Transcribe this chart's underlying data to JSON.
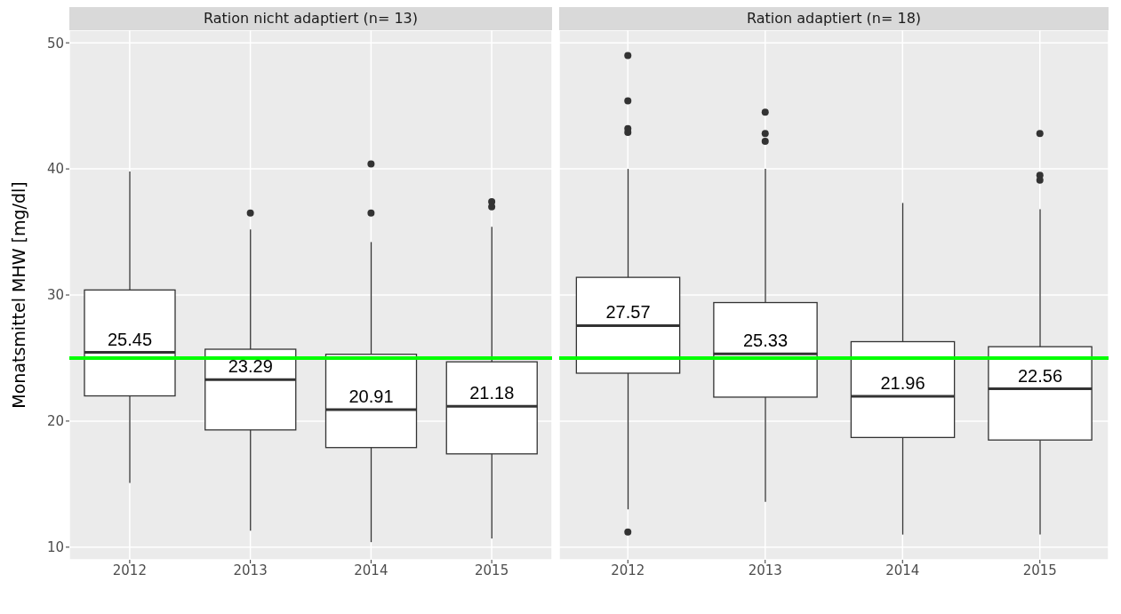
{
  "chart_data": [
    {
      "type": "box",
      "title": "Ration nicht adaptiert (n= 13)",
      "ylabel": "Monatsmittel MHW [mg/dl]",
      "categories": [
        "2012",
        "2013",
        "2014",
        "2015"
      ],
      "boxes": [
        {
          "low": 15.1,
          "q1": 22.0,
          "median": 25.45,
          "q3": 30.4,
          "high": 39.8
        },
        {
          "low": 11.3,
          "q1": 19.3,
          "median": 23.29,
          "q3": 25.7,
          "high": 35.2,
          "outliers": [
            36.5
          ]
        },
        {
          "low": 10.4,
          "q1": 17.9,
          "median": 20.91,
          "q3": 25.3,
          "high": 34.2,
          "outliers": [
            40.4,
            36.5
          ]
        },
        {
          "low": 10.7,
          "q1": 17.4,
          "median": 21.18,
          "q3": 24.7,
          "high": 35.4,
          "outliers": [
            37.4,
            37.0
          ]
        }
      ],
      "annotations": [
        {
          "text": "25.45",
          "x": "2012",
          "y": 25.45
        },
        {
          "text": "23.29",
          "x": "2013",
          "y": 23.29
        },
        {
          "text": "20.91",
          "x": "2014",
          "y": 20.91
        },
        {
          "text": "21.18",
          "x": "2015",
          "y": 21.18
        }
      ],
      "ylim": [
        9,
        51
      ],
      "yticks": [
        10,
        20,
        30,
        40,
        50
      ],
      "grid": true,
      "ref_lines": [
        {
          "axis": "y",
          "value": 25,
          "color": "#00ff00"
        }
      ]
    },
    {
      "type": "box",
      "title": "Ration adaptiert (n= 18)",
      "categories": [
        "2012",
        "2013",
        "2014",
        "2015"
      ],
      "boxes": [
        {
          "low": 13.0,
          "q1": 23.8,
          "median": 27.57,
          "q3": 31.4,
          "high": 40.0,
          "outliers": [
            49.0,
            45.4,
            43.2,
            42.9,
            11.2
          ]
        },
        {
          "low": 13.6,
          "q1": 21.9,
          "median": 25.33,
          "q3": 29.4,
          "high": 40.0,
          "outliers": [
            44.5,
            42.8,
            42.2
          ]
        },
        {
          "low": 11.0,
          "q1": 18.7,
          "median": 21.96,
          "q3": 26.3,
          "high": 37.3
        },
        {
          "low": 11.0,
          "q1": 18.5,
          "median": 22.56,
          "q3": 25.9,
          "high": 36.8,
          "outliers": [
            42.8,
            39.5,
            39.1
          ]
        }
      ],
      "annotations": [
        {
          "text": "27.57",
          "x": "2012",
          "y": 27.57
        },
        {
          "text": "25.33",
          "x": "2013",
          "y": 25.33
        },
        {
          "text": "21.96",
          "x": "2014",
          "y": 21.96
        },
        {
          "text": "22.56",
          "x": "2015",
          "y": 22.56
        }
      ],
      "ylim": [
        9,
        51
      ],
      "yticks": [
        10,
        20,
        30,
        40,
        50
      ],
      "grid": true,
      "tick_labels": "x",
      "ref_lines": [
        {
          "axis": "y",
          "value": 25,
          "color": "#00ff00"
        }
      ]
    }
  ]
}
